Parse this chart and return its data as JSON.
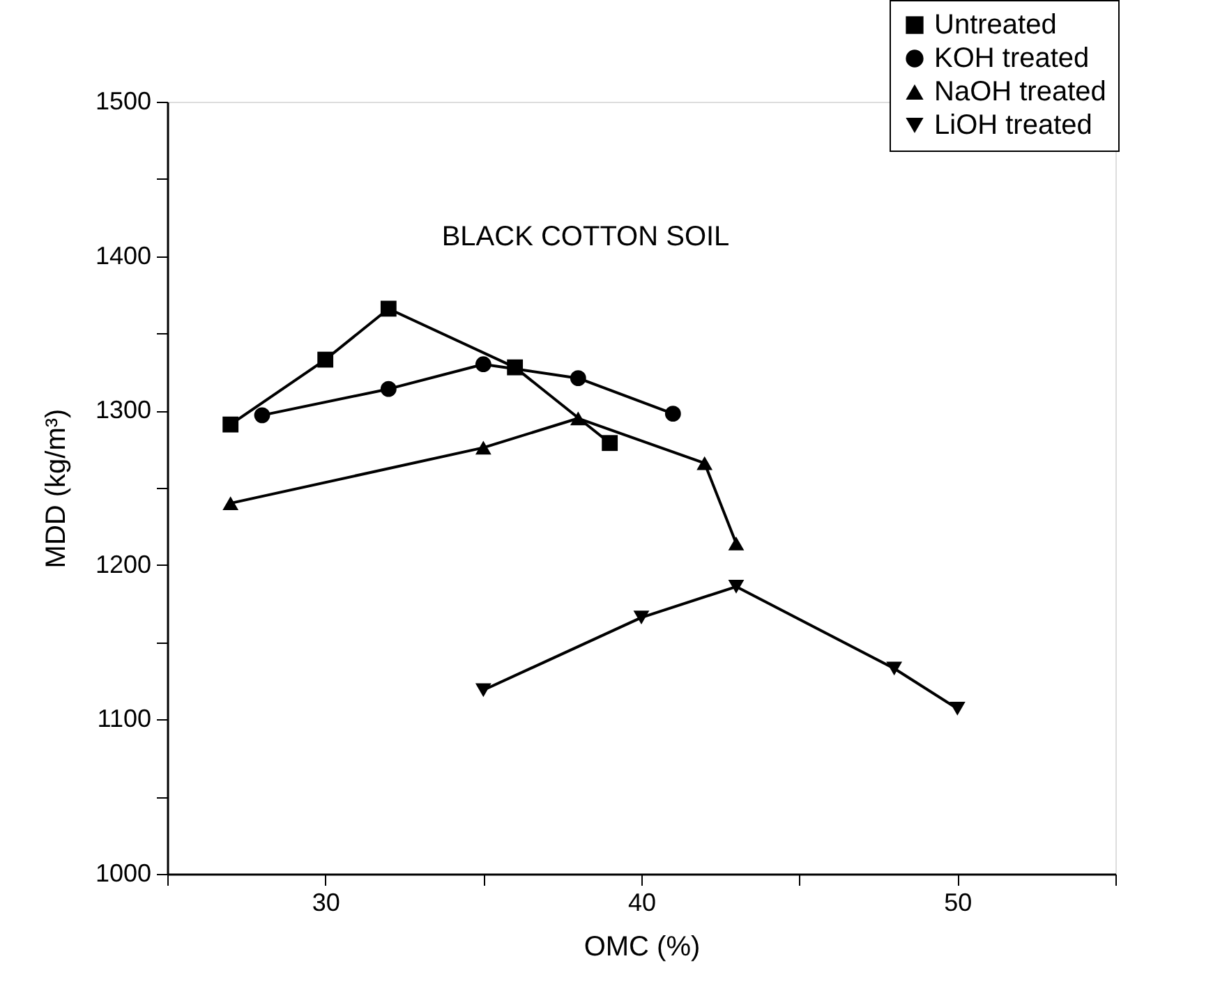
{
  "chart_data": {
    "type": "line",
    "title": "BLACK COTTON SOIL",
    "xlabel": "OMC (%)",
    "ylabel": "MDD (kg/m³)",
    "xlim": [
      25,
      55
    ],
    "xticks": [
      {
        "value": 25,
        "label": null
      },
      30,
      {
        "value": 35,
        "label": null
      },
      40,
      {
        "value": 45,
        "label": null
      },
      50,
      {
        "value": 55,
        "label": null
      }
    ],
    "ylim": [
      1000,
      1500
    ],
    "yticks": [
      1000,
      {
        "value": 1050,
        "label": null
      },
      1100,
      {
        "value": 1150,
        "label": null
      },
      1200,
      {
        "value": 1250,
        "label": null
      },
      1300,
      {
        "value": 1350,
        "label": null
      },
      1400,
      {
        "value": 1450,
        "label": null
      },
      1500
    ],
    "grid": false,
    "legend": "top right",
    "line_style": "solid",
    "series": [
      {
        "name": "Untreated",
        "color": "#000000",
        "marker": "square",
        "x": [
          27,
          30,
          32,
          36,
          39
        ],
        "values": [
          1291,
          1333,
          1366,
          1328,
          1279
        ]
      },
      {
        "name": "KOH treated",
        "color": "#000000",
        "marker": "circle",
        "x": [
          28,
          32,
          35,
          38,
          41
        ],
        "values": [
          1297,
          1314,
          1330,
          1321,
          1298
        ]
      },
      {
        "name": "NaOH treated",
        "color": "#000000",
        "marker": "triangle",
        "x": [
          27,
          35,
          38,
          42,
          43
        ],
        "values": [
          1240,
          1276,
          1295,
          1266,
          1214
        ]
      },
      {
        "name": "LiOH treated",
        "color": "#000000",
        "marker": "triangle-down",
        "x": [
          35,
          40,
          43,
          48,
          50
        ],
        "values": [
          1119,
          1166,
          1186,
          1133,
          1107
        ]
      }
    ]
  }
}
